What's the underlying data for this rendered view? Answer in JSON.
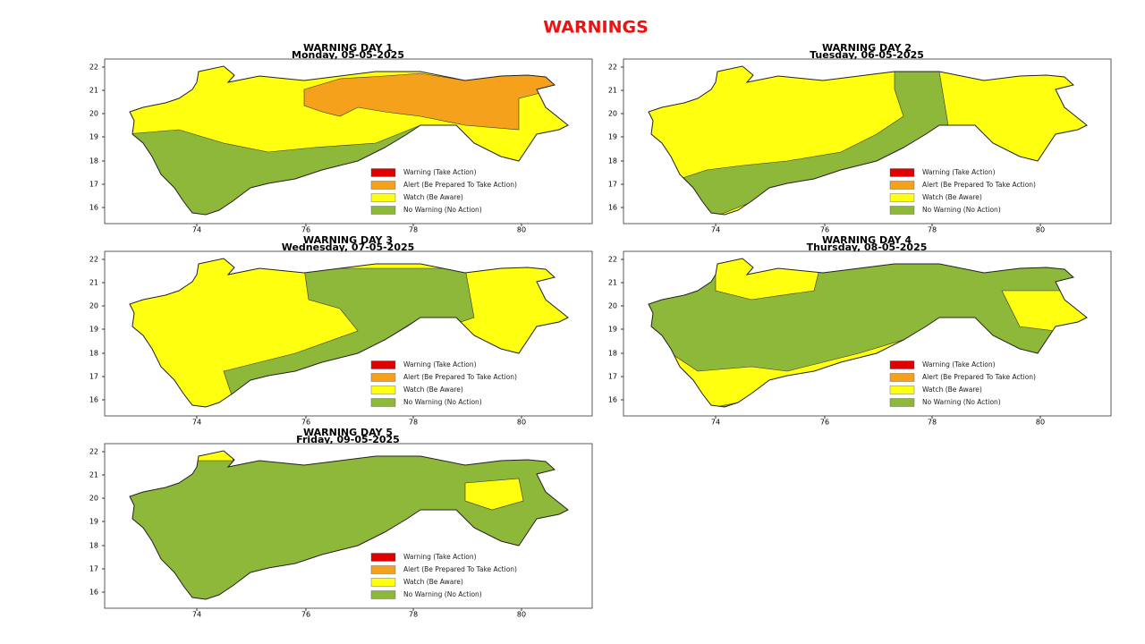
{
  "title": "WARNINGS",
  "panels": [
    {
      "title": "WARNING DAY 1",
      "date": "Monday, 05-05-2025"
    },
    {
      "title": "WARNING DAY 2",
      "date": "Tuesday, 06-05-2025"
    },
    {
      "title": "WARNING DAY 3",
      "date": "Wednesday, 07-05-2025"
    },
    {
      "title": "WARNING DAY 4",
      "date": "Thursday, 08-05-2025"
    },
    {
      "title": "WARNING DAY 5",
      "date": "Friday, 09-05-2025"
    }
  ],
  "y_ticks": [
    "22",
    "21",
    "20",
    "19",
    "18",
    "17",
    "16"
  ],
  "x_ticks": [
    "74",
    "76",
    "78",
    "80"
  ],
  "legend": [
    "Warning (Take Action)",
    "Alert (Be Prepared To Take Action)",
    "Watch (Be Aware)",
    "No Warning (No Action)"
  ]
}
